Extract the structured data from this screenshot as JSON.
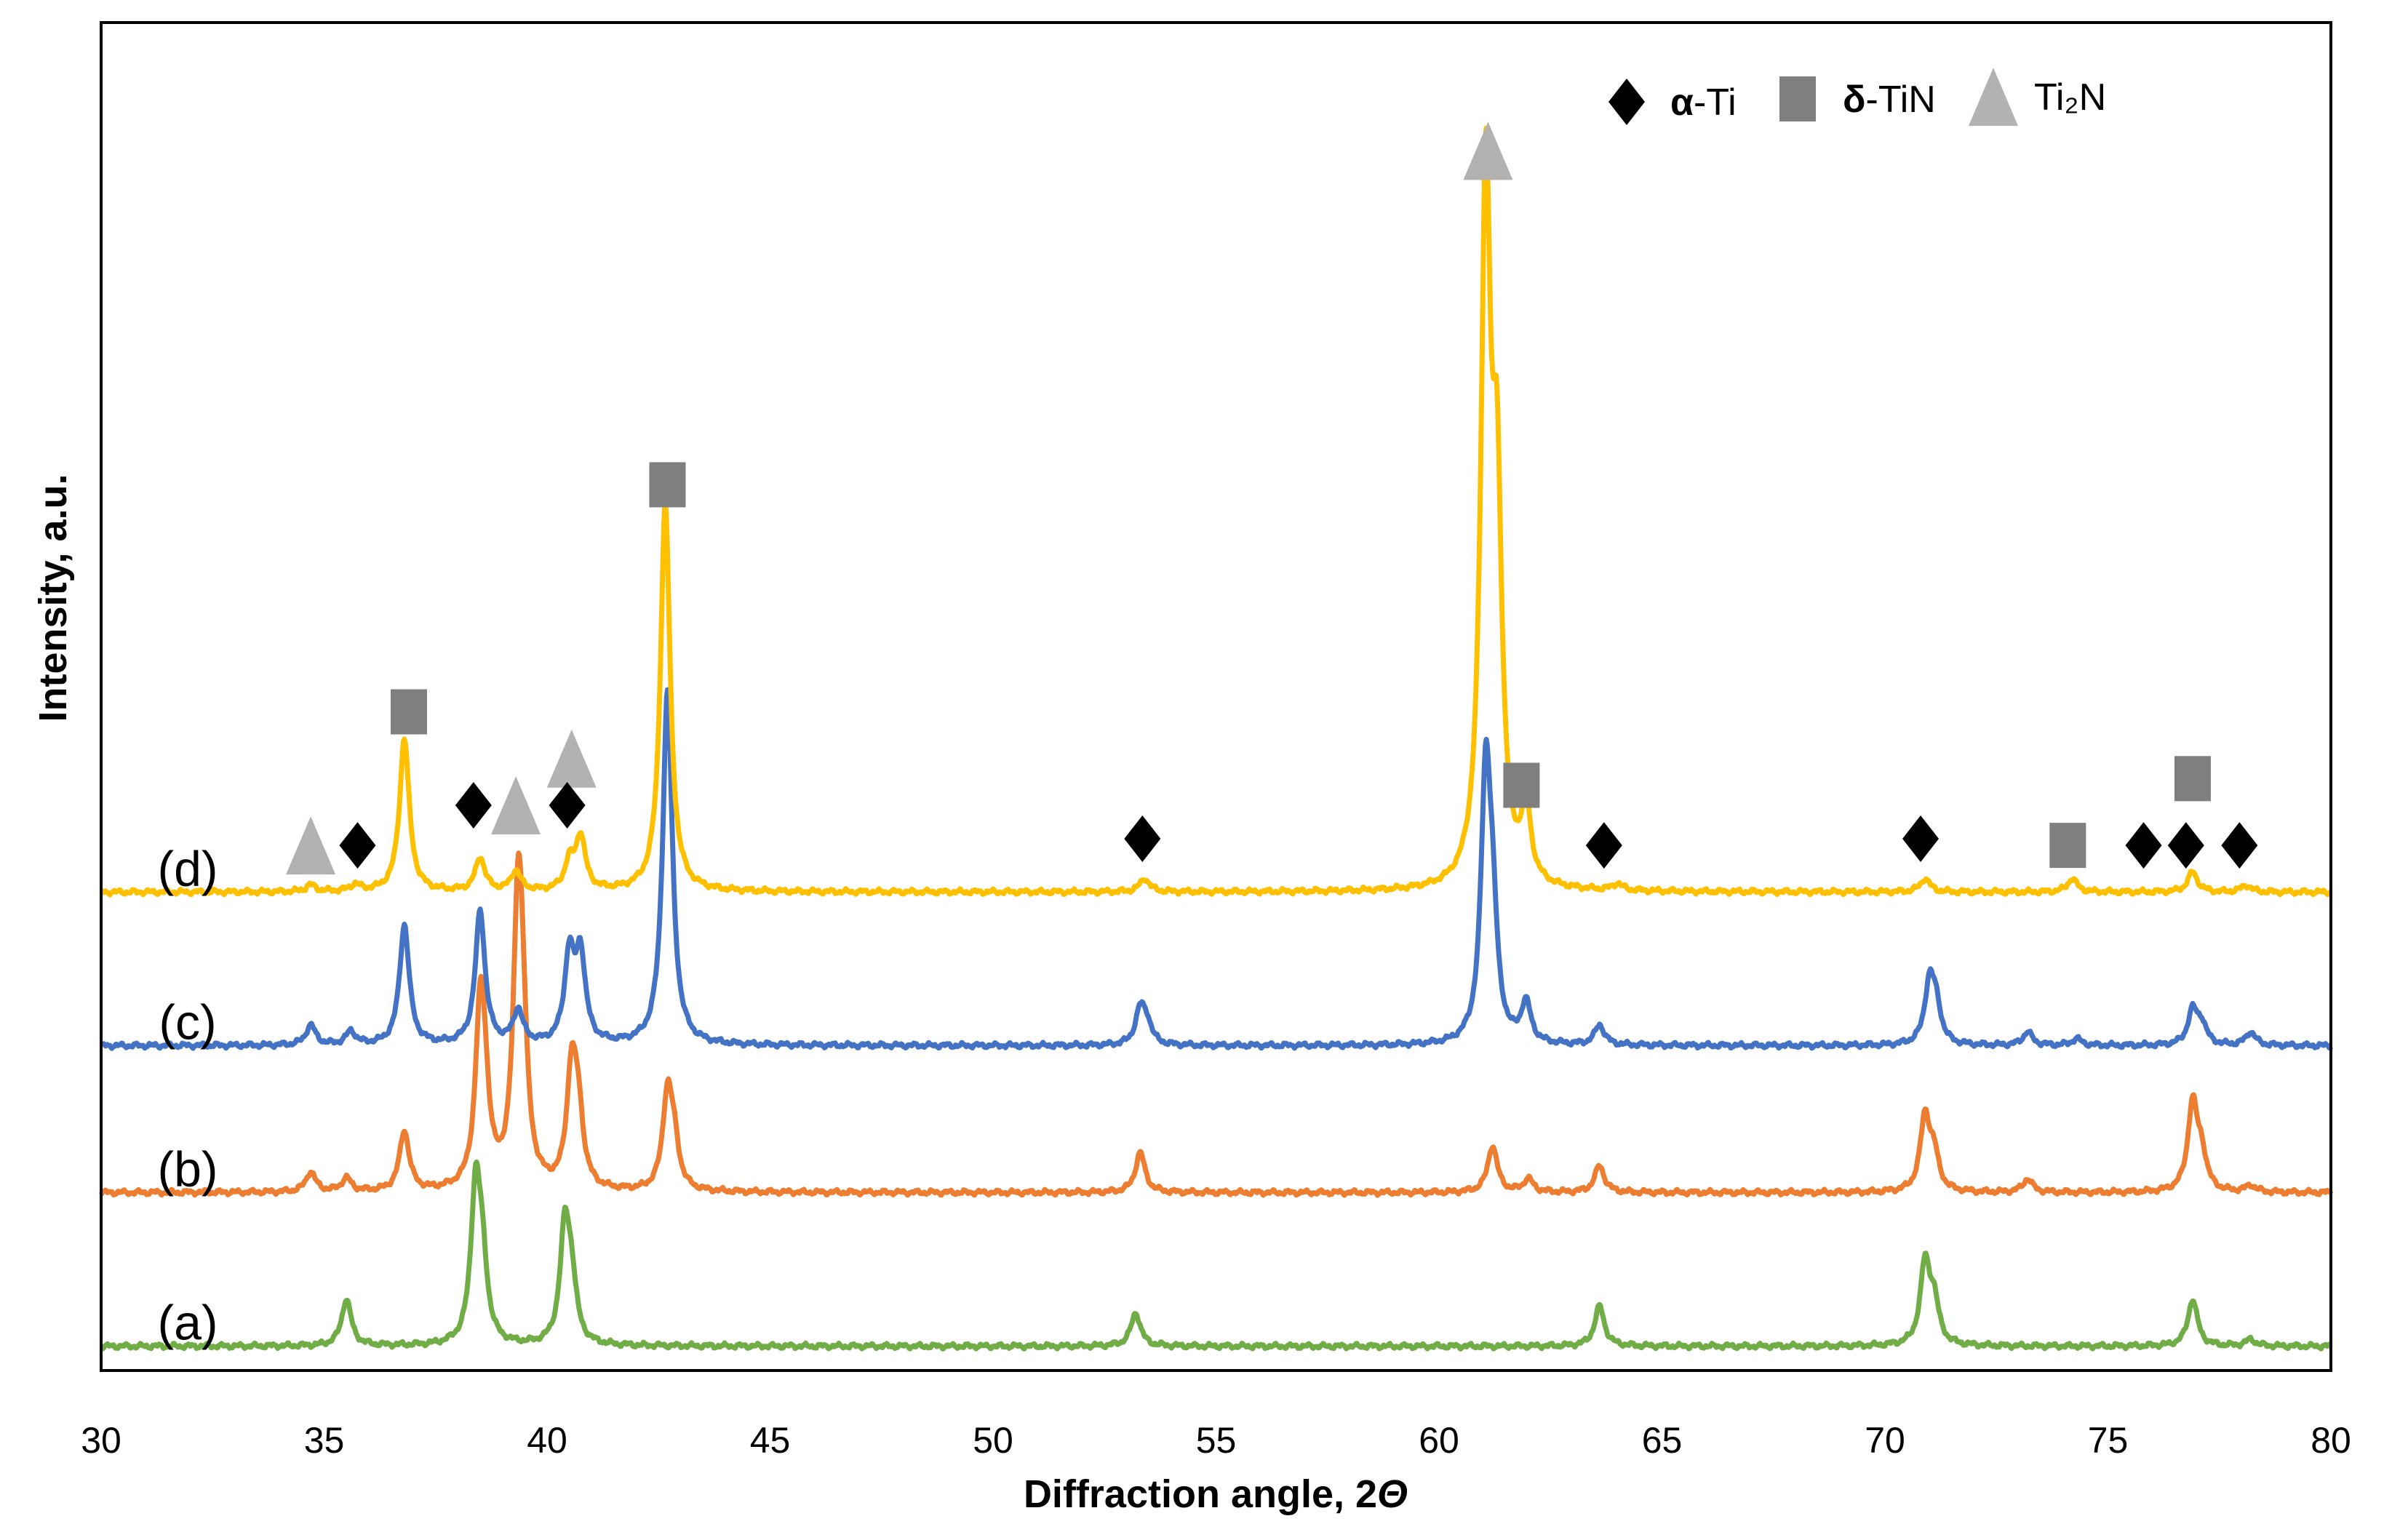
{
  "chart_data": {
    "type": "line",
    "title": "",
    "xlabel": "Diffraction angle, 2",
    "xlabel_symbol": "Θ",
    "ylabel": "Intensity, a.u.",
    "xlim": [
      30,
      80
    ],
    "xticks": [
      30,
      35,
      40,
      45,
      50,
      55,
      60,
      65,
      70,
      75,
      80
    ],
    "ylim": [
      0,
      100
    ],
    "legend": {
      "placement": "top-right",
      "entries": [
        {
          "marker": "diamond",
          "color": "#000000",
          "prefix": "α",
          "label": "-Ti"
        },
        {
          "marker": "square",
          "color": "#7f7f7f",
          "prefix": "δ",
          "label": "-TiN"
        },
        {
          "marker": "triangle",
          "color": "#b4b1b1",
          "prefix": "",
          "label": "Ti₂N"
        }
      ]
    },
    "series": [
      {
        "name": "(a)",
        "color": "#70ad47",
        "baseline": 2,
        "peaks": [
          [
            35.5,
            7
          ],
          [
            38.4,
            23
          ],
          [
            38.55,
            10
          ],
          [
            40.4,
            17
          ],
          [
            40.55,
            8
          ],
          [
            53.2,
            5
          ],
          [
            63.6,
            6
          ],
          [
            70.9,
            12
          ],
          [
            71.1,
            6
          ],
          [
            76.9,
            7
          ],
          [
            78.2,
            1
          ]
        ]
      },
      {
        "name": "(b)",
        "color": "#ed7d31",
        "baseline": 25,
        "peaks": [
          [
            34.7,
            3
          ],
          [
            35.5,
            2
          ],
          [
            36.8,
            9
          ],
          [
            38.5,
            24
          ],
          [
            38.6,
            10
          ],
          [
            39.35,
            40
          ],
          [
            39.45,
            15
          ],
          [
            40.55,
            17
          ],
          [
            40.7,
            10
          ],
          [
            42.7,
            14
          ],
          [
            42.85,
            6
          ],
          [
            53.3,
            6
          ],
          [
            61.2,
            7
          ],
          [
            62.0,
            2
          ],
          [
            63.6,
            4
          ],
          [
            70.9,
            11
          ],
          [
            71.1,
            5
          ],
          [
            73.2,
            2
          ],
          [
            76.9,
            13
          ],
          [
            77.1,
            5
          ],
          [
            78.2,
            1
          ]
        ]
      },
      {
        "name": "(c)",
        "color": "#4472c4",
        "baseline": 47,
        "peaks": [
          [
            34.7,
            3
          ],
          [
            35.6,
            2
          ],
          [
            36.8,
            18
          ],
          [
            38.5,
            20
          ],
          [
            39.35,
            5
          ],
          [
            40.5,
            13
          ],
          [
            40.75,
            13
          ],
          [
            42.7,
            53
          ],
          [
            53.3,
            5
          ],
          [
            53.45,
            3
          ],
          [
            61.05,
            39
          ],
          [
            61.2,
            15
          ],
          [
            61.95,
            6
          ],
          [
            63.6,
            3
          ],
          [
            71.0,
            9
          ],
          [
            71.15,
            5
          ],
          [
            73.2,
            2
          ],
          [
            74.3,
            1
          ],
          [
            76.9,
            5
          ],
          [
            77.1,
            3
          ],
          [
            78.2,
            2
          ]
        ]
      },
      {
        "name": "(d)",
        "color": "#ffc000",
        "baseline": 70,
        "peaks": [
          [
            34.7,
            1
          ],
          [
            35.7,
            1
          ],
          [
            36.8,
            23
          ],
          [
            38.5,
            5
          ],
          [
            39.3,
            3
          ],
          [
            40.5,
            4
          ],
          [
            40.75,
            8
          ],
          [
            42.65,
            58
          ],
          [
            53.4,
            2
          ],
          [
            61.05,
            103
          ],
          [
            61.3,
            53
          ],
          [
            61.95,
            11
          ],
          [
            64.0,
            1
          ],
          [
            70.9,
            2
          ],
          [
            74.2,
            2
          ],
          [
            76.9,
            3
          ],
          [
            78.1,
            1
          ]
        ]
      }
    ],
    "peak_markers": [
      {
        "x": 34.7,
        "y": 77,
        "type": "triangle"
      },
      {
        "x": 35.75,
        "y": 77,
        "type": "diamond"
      },
      {
        "x": 36.9,
        "y": 97,
        "type": "square"
      },
      {
        "x": 38.35,
        "y": 83,
        "type": "diamond"
      },
      {
        "x": 39.3,
        "y": 83,
        "type": "triangle"
      },
      {
        "x": 40.55,
        "y": 90,
        "type": "triangle"
      },
      {
        "x": 40.45,
        "y": 83,
        "type": "diamond"
      },
      {
        "x": 42.7,
        "y": 131,
        "type": "square"
      },
      {
        "x": 53.35,
        "y": 78,
        "type": "diamond"
      },
      {
        "x": 61.1,
        "y": 181,
        "type": "triangle"
      },
      {
        "x": 61.85,
        "y": 86,
        "type": "square"
      },
      {
        "x": 63.7,
        "y": 77,
        "type": "diamond"
      },
      {
        "x": 70.8,
        "y": 78,
        "type": "diamond"
      },
      {
        "x": 74.1,
        "y": 77,
        "type": "square"
      },
      {
        "x": 75.8,
        "y": 77,
        "type": "diamond"
      },
      {
        "x": 76.75,
        "y": 77,
        "type": "diamond"
      },
      {
        "x": 76.9,
        "y": 87,
        "type": "square"
      },
      {
        "x": 77.95,
        "y": 77,
        "type": "diamond"
      }
    ]
  }
}
